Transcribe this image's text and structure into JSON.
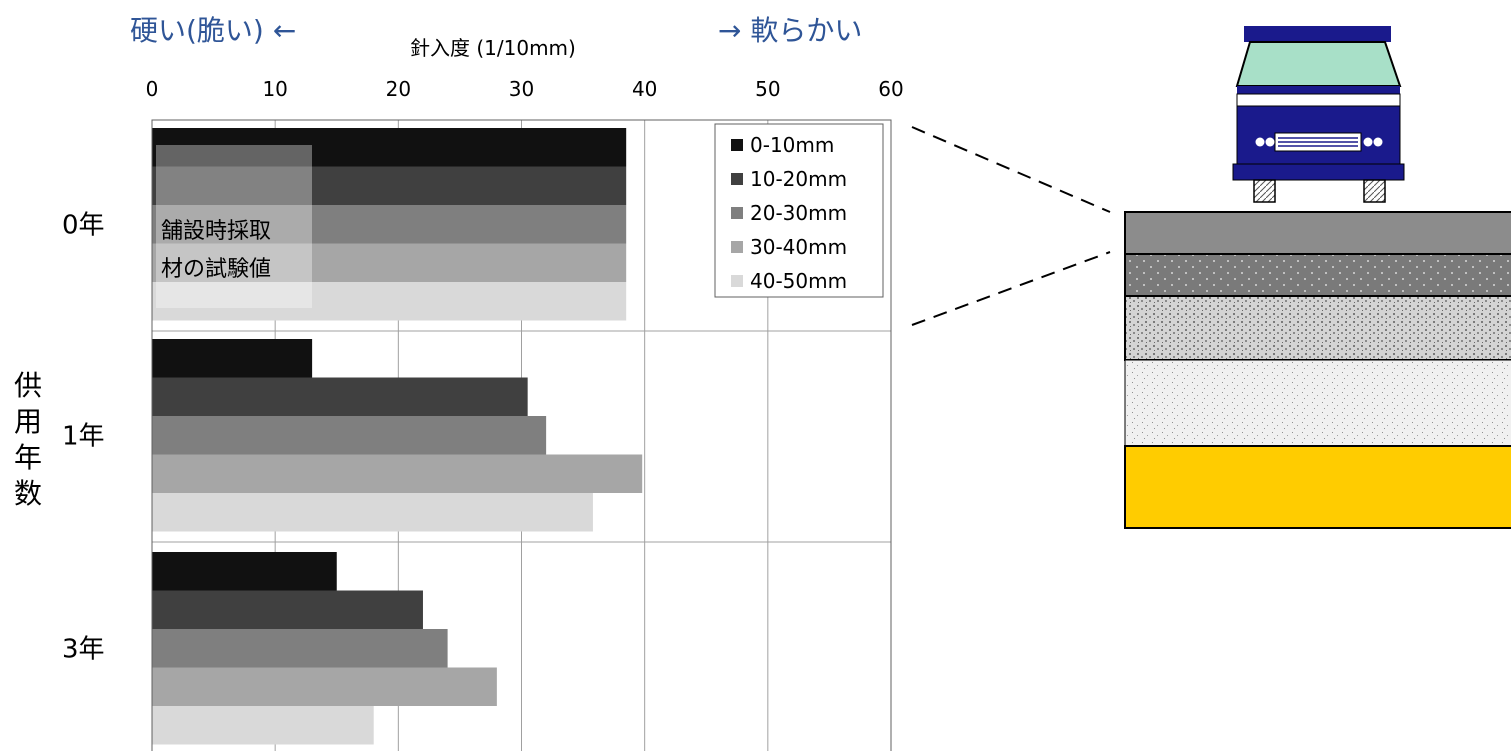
{
  "annotations": {
    "left_arrow_text": "硬い(脆い) ←",
    "right_arrow_text": "→ 軟らかい",
    "note_line1": "舗設時採取",
    "note_line2": "材の試験値"
  },
  "colors": {
    "series": [
      "#111111",
      "#404040",
      "#7f7f7f",
      "#a6a6a6",
      "#d9d9d9"
    ],
    "accent_text": "#2f5597",
    "grid": "#a0a0a0",
    "truck_body": "#1a1a8c",
    "truck_glass": "#a8e0c8",
    "layer_surface": "#8c8c8c",
    "layer_binder": "#7a7a7a",
    "layer_base": "#d0d0d0",
    "layer_subbase": "#ebebeb",
    "layer_subgrade": "#ffcc00"
  },
  "chart_data": {
    "type": "bar",
    "orientation": "horizontal",
    "title": "針入度 (1/10mm)",
    "xlabel": "針入度 (1/10mm)",
    "ylabel": "供用年数",
    "xlim": [
      0,
      60
    ],
    "xticks": [
      0,
      10,
      20,
      30,
      40,
      50,
      60
    ],
    "categories": [
      "0年",
      "1年",
      "3年"
    ],
    "series": [
      {
        "name": "0-10mm",
        "values": [
          38.5,
          13,
          15
        ]
      },
      {
        "name": "10-20mm",
        "values": [
          38.5,
          30.5,
          22
        ]
      },
      {
        "name": "20-30mm",
        "values": [
          38.5,
          32,
          24
        ]
      },
      {
        "name": "30-40mm",
        "values": [
          38.5,
          39.8,
          28
        ]
      },
      {
        "name": "40-50mm",
        "values": [
          38.5,
          35.8,
          18
        ]
      }
    ],
    "grid": true,
    "legend_position": "top-right"
  }
}
